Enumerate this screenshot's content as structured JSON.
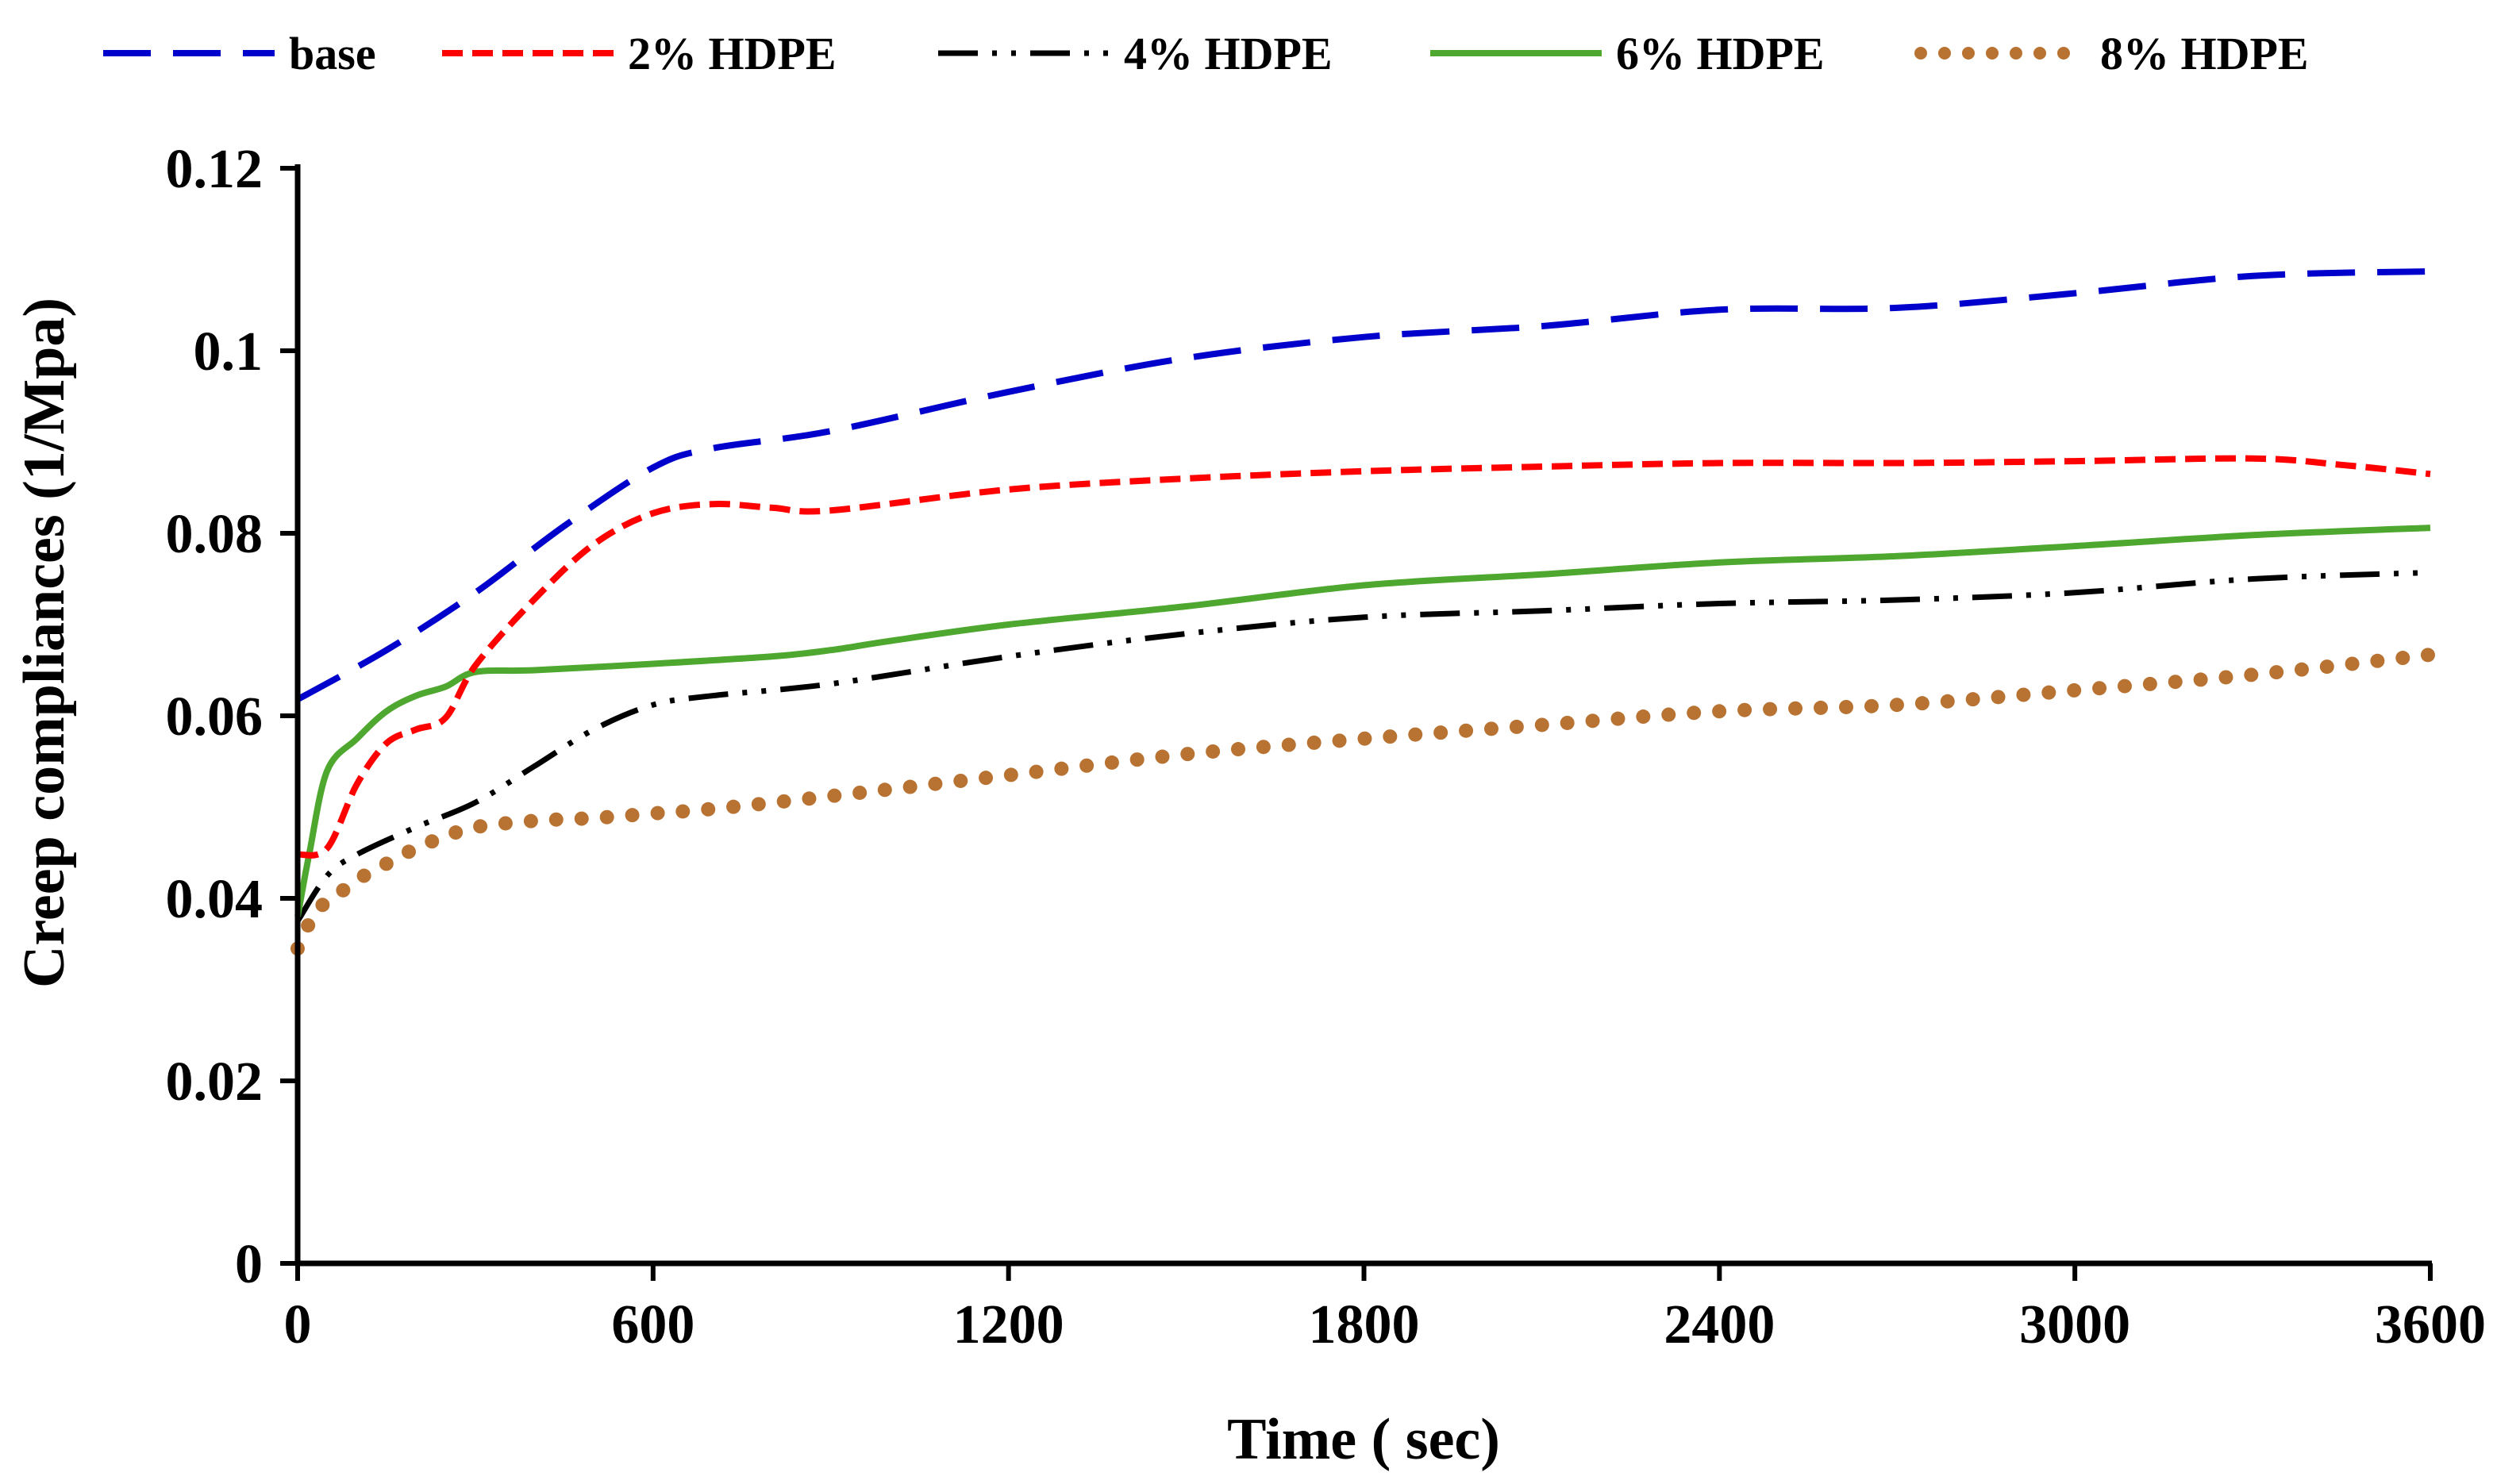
{
  "chart_data": {
    "type": "line",
    "title": "",
    "xlabel": "Time ( sec)",
    "ylabel": "Creep compliances (1/Mpa)",
    "xlim": [
      0,
      3600
    ],
    "ylim": [
      0,
      0.12
    ],
    "xticks": [
      0,
      600,
      1200,
      1800,
      2400,
      3000,
      3600
    ],
    "yticks": [
      0,
      0.02,
      0.04,
      0.06,
      0.08,
      0.1,
      0.12
    ],
    "xtick_labels": [
      "0",
      "600",
      "1200",
      "1800",
      "2400",
      "3000",
      "3600"
    ],
    "ytick_labels": [
      "0",
      "0.02",
      "0.04",
      "0.06",
      "0.08",
      "0.1",
      "0.12"
    ],
    "legend_position": "top",
    "grid": false,
    "series": [
      {
        "name": "base",
        "color": "#0000CC",
        "style": "long-dash",
        "x": [
          0,
          150,
          300,
          450,
          600,
          700,
          900,
          1200,
          1500,
          1800,
          2100,
          2400,
          2700,
          3000,
          3300,
          3600
        ],
        "y": [
          0.0618,
          0.0672,
          0.0735,
          0.0808,
          0.0872,
          0.0893,
          0.0912,
          0.0955,
          0.0992,
          0.1015,
          0.1027,
          0.1045,
          0.1047,
          0.1063,
          0.1082,
          0.1087
        ]
      },
      {
        "name": "2% HDPE",
        "color": "#FF0000",
        "style": "short-dash",
        "x": [
          0,
          50,
          100,
          150,
          200,
          250,
          300,
          400,
          500,
          600,
          700,
          800,
          900,
          1200,
          1500,
          1800,
          2100,
          2400,
          2700,
          3000,
          3300,
          3450,
          3600
        ],
        "y": [
          0.0448,
          0.0455,
          0.0525,
          0.057,
          0.0585,
          0.0598,
          0.0655,
          0.0728,
          0.0788,
          0.0822,
          0.0832,
          0.0828,
          0.0825,
          0.0848,
          0.086,
          0.0868,
          0.0873,
          0.0877,
          0.0877,
          0.0879,
          0.0882,
          0.0875,
          0.0865
        ]
      },
      {
        "name": "4% HDPE",
        "color": "#000000",
        "style": "dash-dot-dot",
        "x": [
          0,
          50,
          100,
          200,
          300,
          400,
          500,
          600,
          700,
          900,
          1200,
          1500,
          1800,
          2100,
          2400,
          2700,
          3000,
          3300,
          3600
        ],
        "y": [
          0.0375,
          0.0425,
          0.0448,
          0.0478,
          0.0505,
          0.0545,
          0.0585,
          0.0612,
          0.0622,
          0.0635,
          0.0665,
          0.069,
          0.0708,
          0.0715,
          0.0723,
          0.0727,
          0.0735,
          0.075,
          0.0757
        ]
      },
      {
        "name": "6% HDPE",
        "color": "#4EA72E",
        "style": "solid",
        "x": [
          0,
          20,
          50,
          100,
          150,
          200,
          250,
          300,
          400,
          600,
          800,
          900,
          1000,
          1200,
          1500,
          1800,
          2100,
          2400,
          2700,
          3000,
          3300,
          3600
        ],
        "y": [
          0.038,
          0.045,
          0.054,
          0.0575,
          0.0605,
          0.0622,
          0.0632,
          0.0648,
          0.065,
          0.0657,
          0.0665,
          0.0672,
          0.0682,
          0.07,
          0.072,
          0.0743,
          0.0755,
          0.0768,
          0.0775,
          0.0786,
          0.0798,
          0.0806
        ]
      },
      {
        "name": "8% HDPE",
        "color": "#B87333",
        "style": "round-dot",
        "x": [
          0,
          30,
          60,
          100,
          150,
          200,
          250,
          300,
          400,
          500,
          600,
          700,
          900,
          1200,
          1500,
          1800,
          2100,
          2400,
          2700,
          3000,
          3300,
          3600
        ],
        "y": [
          0.0345,
          0.0385,
          0.04,
          0.042,
          0.0438,
          0.0455,
          0.0468,
          0.0478,
          0.0485,
          0.0488,
          0.0493,
          0.0498,
          0.0512,
          0.0535,
          0.0558,
          0.0575,
          0.059,
          0.0605,
          0.0612,
          0.0628,
          0.0645,
          0.0667
        ]
      }
    ]
  }
}
